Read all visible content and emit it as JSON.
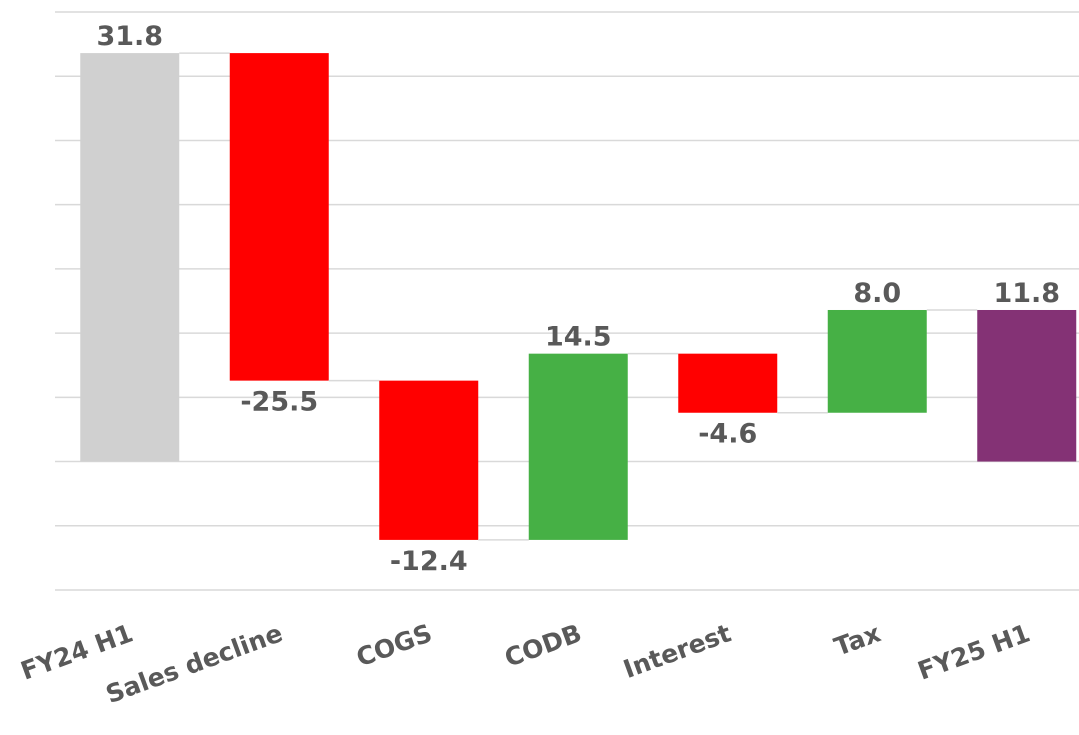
{
  "chart_data": {
    "type": "waterfall",
    "categories": [
      "FY24 H1",
      "Sales decline",
      "COGS",
      "CODB",
      "Interest",
      "Tax",
      "FY25 H1"
    ],
    "values": [
      31.8,
      -25.5,
      -12.4,
      14.5,
      -4.6,
      8.0,
      11.8
    ],
    "value_labels": [
      "31.8",
      "-25.5",
      "-12.4",
      "14.5",
      "-4.6",
      "8.0",
      "11.8"
    ],
    "bar_kinds": [
      "total",
      "step",
      "step",
      "step",
      "step",
      "step",
      "total"
    ],
    "colors": [
      "#d0d0d0",
      "#ff0000",
      "#ff0000",
      "#46b045",
      "#ff0000",
      "#46b045",
      "#843275"
    ],
    "ylim": [
      -10,
      35
    ],
    "yticks": [
      -10,
      -5,
      0,
      5,
      10,
      15,
      20,
      25,
      30,
      35
    ],
    "grid": true
  }
}
